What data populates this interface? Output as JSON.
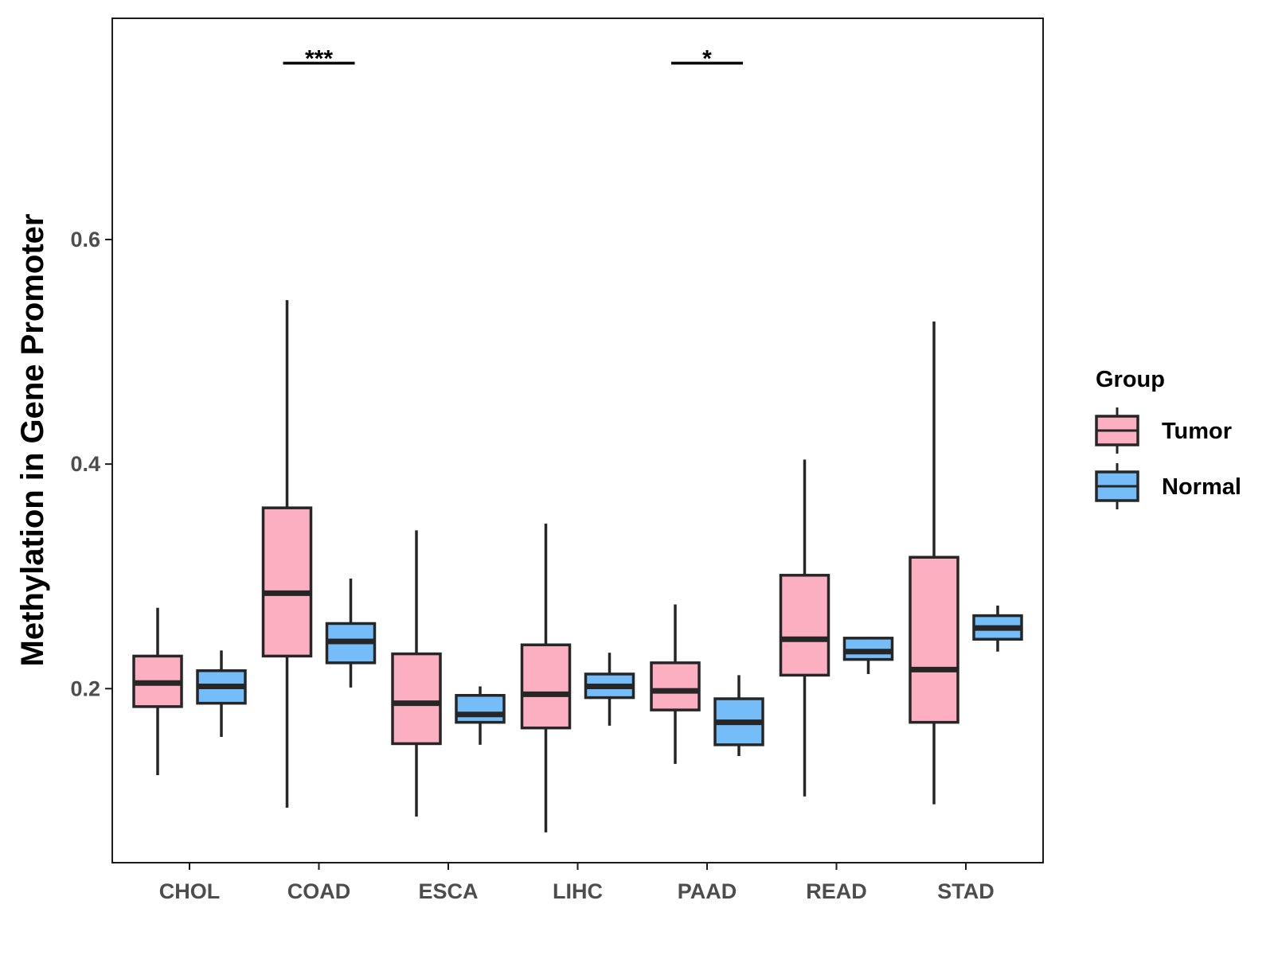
{
  "chart_data": {
    "type": "boxplot",
    "title": "",
    "xlabel": "",
    "ylabel": "Methylation in Gene Promoter",
    "ylim": [
      0.045,
      0.797
    ],
    "yticks": [
      0.2,
      0.4,
      0.6
    ],
    "ytick_labels": [
      "0.2",
      "0.4",
      "0.6"
    ],
    "grid": false,
    "legend_position": "right",
    "categories": [
      "CHOL",
      "COAD",
      "ESCA",
      "LIHC",
      "PAAD",
      "READ",
      "STAD"
    ],
    "legend": {
      "title": "Group",
      "entries": [
        "Tumor",
        "Normal"
      ]
    },
    "colors": {
      "Tumor": "#FBAFC1",
      "Normal": "#74BDF8",
      "outline": "#262626"
    },
    "series": [
      {
        "name": "Tumor",
        "boxes": [
          {
            "min": 0.123,
            "q1": 0.184,
            "median": 0.205,
            "q3": 0.229,
            "max": 0.272
          },
          {
            "min": 0.094,
            "q1": 0.229,
            "median": 0.285,
            "q3": 0.361,
            "max": 0.546
          },
          {
            "min": 0.086,
            "q1": 0.151,
            "median": 0.187,
            "q3": 0.231,
            "max": 0.341
          },
          {
            "min": 0.072,
            "q1": 0.165,
            "median": 0.195,
            "q3": 0.239,
            "max": 0.347
          },
          {
            "min": 0.133,
            "q1": 0.181,
            "median": 0.198,
            "q3": 0.223,
            "max": 0.275
          },
          {
            "min": 0.104,
            "q1": 0.212,
            "median": 0.244,
            "q3": 0.301,
            "max": 0.404
          },
          {
            "min": 0.097,
            "q1": 0.17,
            "median": 0.217,
            "q3": 0.317,
            "max": 0.527
          }
        ]
      },
      {
        "name": "Normal",
        "boxes": [
          {
            "min": 0.157,
            "q1": 0.187,
            "median": 0.202,
            "q3": 0.216,
            "max": 0.234
          },
          {
            "min": 0.201,
            "q1": 0.223,
            "median": 0.242,
            "q3": 0.258,
            "max": 0.298
          },
          {
            "min": 0.15,
            "q1": 0.17,
            "median": 0.177,
            "q3": 0.194,
            "max": 0.202
          },
          {
            "min": 0.167,
            "q1": 0.192,
            "median": 0.202,
            "q3": 0.213,
            "max": 0.232
          },
          {
            "min": 0.14,
            "q1": 0.15,
            "median": 0.17,
            "q3": 0.191,
            "max": 0.212
          },
          {
            "min": 0.213,
            "q1": 0.226,
            "median": 0.233,
            "q3": 0.245,
            "max": 0.246
          },
          {
            "min": 0.233,
            "q1": 0.244,
            "median": 0.254,
            "q3": 0.265,
            "max": 0.274
          }
        ]
      }
    ],
    "annotations": [
      {
        "category": "COAD",
        "label": "***",
        "y": 0.757
      },
      {
        "category": "PAAD",
        "label": "*",
        "y": 0.757
      }
    ]
  }
}
